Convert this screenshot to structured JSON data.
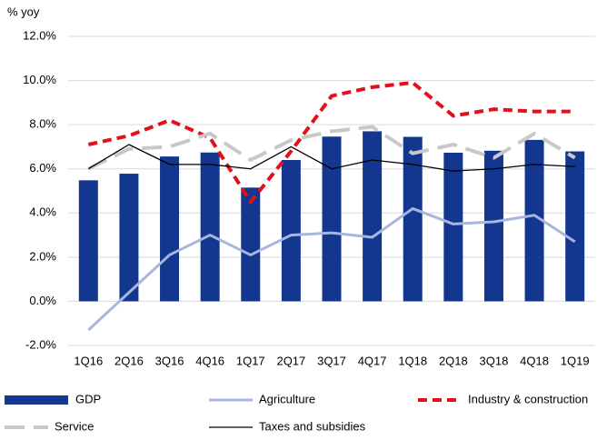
{
  "chart_data": {
    "type": "bar",
    "y_axis_label": "% yoy",
    "categories": [
      "1Q16",
      "2Q16",
      "3Q16",
      "4Q16",
      "1Q17",
      "2Q17",
      "3Q17",
      "4Q17",
      "1Q18",
      "2Q18",
      "3Q18",
      "4Q18",
      "1Q19"
    ],
    "ylim": [
      -2,
      12
    ],
    "yticks": [
      {
        "value": -2,
        "label": "-2.0%"
      },
      {
        "value": 0,
        "label": "0.0%"
      },
      {
        "value": 2,
        "label": "2.0%"
      },
      {
        "value": 4,
        "label": "4.0%"
      },
      {
        "value": 6,
        "label": "6.0%"
      },
      {
        "value": 8,
        "label": "8.0%"
      },
      {
        "value": 10,
        "label": "10.0%"
      },
      {
        "value": 12,
        "label": "12.0%"
      }
    ],
    "grid": true,
    "series": [
      {
        "name": "GDP",
        "type": "bar",
        "color": "#13368f",
        "values": [
          5.48,
          5.78,
          6.56,
          6.74,
          5.15,
          6.4,
          7.46,
          7.7,
          7.45,
          6.73,
          6.82,
          7.31,
          6.79
        ]
      },
      {
        "name": "Agriculture",
        "type": "line",
        "color": "#a8b6de",
        "dash": "solid",
        "values": [
          -1.3,
          0.4,
          2.1,
          3.0,
          2.1,
          3.0,
          3.1,
          2.9,
          4.2,
          3.5,
          3.6,
          3.9,
          2.7
        ]
      },
      {
        "name": "Industry & construction",
        "type": "line",
        "color": "#e3101b",
        "dash": "dashed",
        "values": [
          7.1,
          7.5,
          8.2,
          7.4,
          4.5,
          6.8,
          9.3,
          9.7,
          9.9,
          8.4,
          8.7,
          8.6,
          8.6
        ]
      },
      {
        "name": "Service",
        "type": "line",
        "color": "#c8c8c8",
        "dash": "longdash",
        "values": [
          6.0,
          6.9,
          7.0,
          7.6,
          6.4,
          7.3,
          7.7,
          7.9,
          6.7,
          7.1,
          6.5,
          7.6,
          6.5
        ]
      },
      {
        "name": "Taxes and subsidies",
        "type": "line",
        "color": "#000000",
        "dash": "thin",
        "values": [
          6.0,
          7.1,
          6.2,
          6.2,
          6.0,
          7.0,
          6.0,
          6.4,
          6.2,
          5.9,
          6.0,
          6.2,
          6.1
        ]
      }
    ]
  }
}
